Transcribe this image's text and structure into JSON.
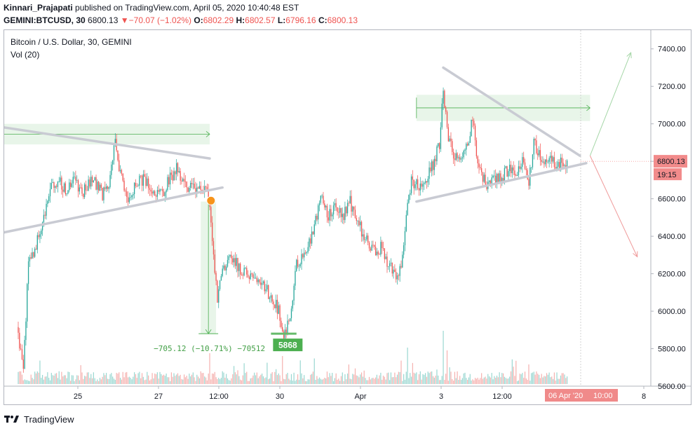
{
  "header": {
    "author": "Kinnari_Prajapati",
    "published_text": "published on TradingView.com, April 05, 2020 10:40:48 EST",
    "symbol": "GEMINI:BTCUSD, 30",
    "last": "6800.13",
    "change": "−70.07 (−1.02%)",
    "o_label": "O:",
    "o": "6802.29",
    "h_label": "H:",
    "h": "6802.57",
    "l_label": "L:",
    "l": "6796.16",
    "c_label": "C:",
    "c": "6800.13"
  },
  "legend": {
    "title": "Bitcoin / U.S. Dollar, 30, GEMINI",
    "vol": "Vol (20)"
  },
  "footer": {
    "brand": "TradingView"
  },
  "colors": {
    "up": "#26a69a",
    "down": "#ef5350",
    "trendline": "#c9cbd3",
    "range_fill": "#e8f5e9",
    "range_line": "#4caf50",
    "arrow_up": "#a5d6a7",
    "arrow_down": "#ef9a9a",
    "price_badge": "#ef5350",
    "low_badge": "#4caf50",
    "marker": "#f7931a"
  },
  "chart_data": {
    "type": "candlestick",
    "title": "Bitcoin / U.S. Dollar, 30, GEMINI",
    "ylim": [
      5600,
      7500
    ],
    "y_ticks": [
      "7400.00",
      "7200.00",
      "7000.00",
      "6800.00",
      "6600.00",
      "6400.00",
      "6200.00",
      "6000.00",
      "5800.00",
      "5600.00"
    ],
    "x_ticks": [
      "25",
      "27",
      "12:00",
      "30",
      "Apr",
      "3",
      "12:00",
      "8"
    ],
    "current_price": "6800.13",
    "countdown": "19:15",
    "crosshair_date": "06 Apr '20",
    "crosshair_time": "10:00",
    "measure_label": "−705.12 (−10.71%) −70512",
    "low_label": "5868",
    "price_path": [
      [
        0,
        5880
      ],
      [
        4,
        5700
      ],
      [
        8,
        6250
      ],
      [
        14,
        6350
      ],
      [
        20,
        6520
      ],
      [
        26,
        6650
      ],
      [
        32,
        6700
      ],
      [
        38,
        6640
      ],
      [
        44,
        6700
      ],
      [
        50,
        6630
      ],
      [
        58,
        6720
      ],
      [
        66,
        6620
      ],
      [
        72,
        6700
      ],
      [
        76,
        6950
      ],
      [
        80,
        6720
      ],
      [
        86,
        6600
      ],
      [
        92,
        6680
      ],
      [
        98,
        6700
      ],
      [
        106,
        6640
      ],
      [
        112,
        6620
      ],
      [
        118,
        6700
      ],
      [
        124,
        6760
      ],
      [
        128,
        6700
      ],
      [
        134,
        6660
      ],
      [
        140,
        6640
      ],
      [
        144,
        6650
      ],
      [
        148,
        6640
      ],
      [
        150,
        6580
      ],
      [
        152,
        6350
      ],
      [
        156,
        6080
      ],
      [
        162,
        6250
      ],
      [
        168,
        6280
      ],
      [
        174,
        6230
      ],
      [
        180,
        6200
      ],
      [
        186,
        6200
      ],
      [
        192,
        6130
      ],
      [
        198,
        6080
      ],
      [
        204,
        6000
      ],
      [
        207,
        5868
      ],
      [
        210,
        5900
      ],
      [
        214,
        6000
      ],
      [
        218,
        6250
      ],
      [
        224,
        6320
      ],
      [
        230,
        6400
      ],
      [
        234,
        6500
      ],
      [
        238,
        6620
      ],
      [
        242,
        6500
      ],
      [
        248,
        6560
      ],
      [
        254,
        6500
      ],
      [
        260,
        6580
      ],
      [
        266,
        6480
      ],
      [
        272,
        6380
      ],
      [
        278,
        6320
      ],
      [
        284,
        6340
      ],
      [
        290,
        6250
      ],
      [
        296,
        6180
      ],
      [
        300,
        6250
      ],
      [
        304,
        6500
      ],
      [
        308,
        6700
      ],
      [
        314,
        6660
      ],
      [
        320,
        6700
      ],
      [
        326,
        6800
      ],
      [
        330,
        6900
      ],
      [
        333,
        7200
      ],
      [
        336,
        6950
      ],
      [
        340,
        6850
      ],
      [
        346,
        6800
      ],
      [
        352,
        6900
      ],
      [
        356,
        7020
      ],
      [
        360,
        6800
      ],
      [
        366,
        6680
      ],
      [
        372,
        6720
      ],
      [
        378,
        6700
      ],
      [
        384,
        6760
      ],
      [
        390,
        6740
      ],
      [
        396,
        6800
      ],
      [
        400,
        6700
      ],
      [
        404,
        6900
      ],
      [
        410,
        6820
      ],
      [
        416,
        6800
      ],
      [
        422,
        6780
      ],
      [
        430,
        6800
      ]
    ],
    "volume_spikes": [
      [
        150,
        0.55
      ],
      [
        207,
        0.5
      ],
      [
        333,
        0.95
      ],
      [
        336,
        0.6
      ],
      [
        305,
        0.65
      ],
      [
        400,
        0.35
      ]
    ],
    "annotations": {
      "triangle_left": {
        "upper": [
          [
            -20,
            6990
          ],
          [
            150,
            6815
          ]
        ],
        "lower": [
          [
            -15,
            6415
          ],
          [
            160,
            6660
          ]
        ]
      },
      "triangle_right": {
        "upper": [
          [
            333,
            7300
          ],
          [
            440,
            6830
          ]
        ],
        "lower": [
          [
            312,
            6585
          ],
          [
            445,
            6790
          ]
        ]
      },
      "range_box_left": {
        "x": [
          -22,
          150
        ],
        "y": [
          6890,
          7000
        ]
      },
      "range_box_right": {
        "x": [
          312,
          448
        ],
        "y": [
          7015,
          7155
        ]
      },
      "measure_box": {
        "x": [
          143,
          155
        ],
        "y": [
          5880,
          6585
        ]
      },
      "low_line": {
        "x": [
          198,
          218
        ],
        "y": 5880
      },
      "projection_up": [
        [
          448,
          6830
        ],
        [
          480,
          7380
        ]
      ],
      "projection_down": [
        [
          448,
          6830
        ],
        [
          485,
          6290
        ]
      ],
      "marker_point": [
        151,
        6590
      ]
    }
  }
}
